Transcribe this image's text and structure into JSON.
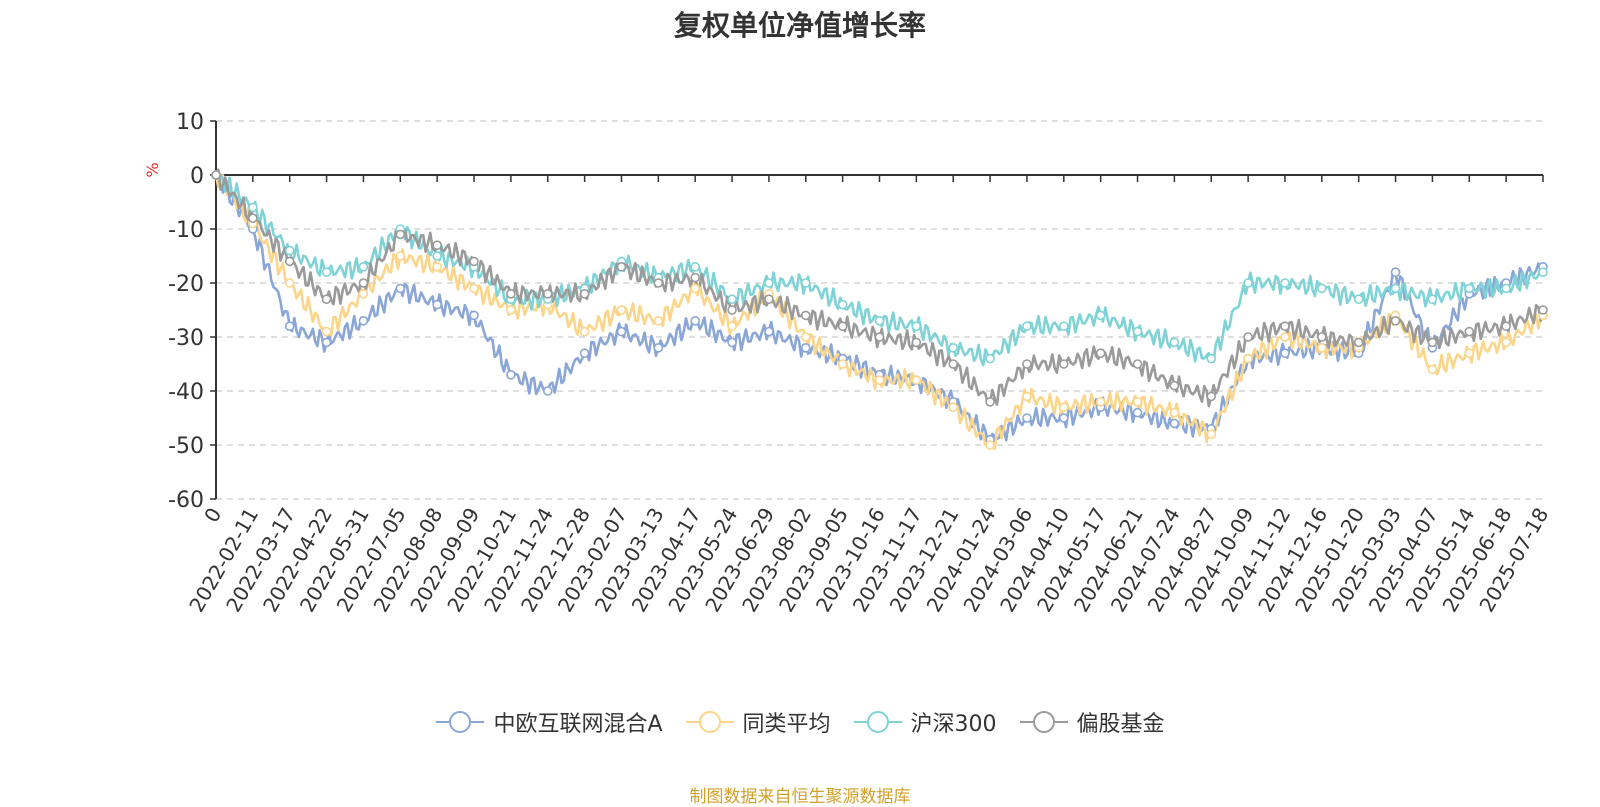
{
  "title": "复权单位净值增长率",
  "source_text": "制图数据来自恒生聚源数据库",
  "colors": {
    "series": [
      "#8aa6d6",
      "#fbd58a",
      "#7fd3d6",
      "#9a9a9a"
    ],
    "axis": "#333333",
    "grid": "#cccccc",
    "unit": "#e03030",
    "source": "#d1a12a"
  },
  "chart_data": {
    "type": "line",
    "title": "复权单位净值增长率",
    "ylabel": "%",
    "ylim": [
      -60,
      10
    ],
    "yticks": [
      10,
      0,
      -10,
      -20,
      -30,
      -40,
      -50,
      -60
    ],
    "grid": "dashed horizontal",
    "legend": "bottom",
    "x": [
      "0",
      "2022-02-11",
      "2022-03-17",
      "2022-04-22",
      "2022-05-31",
      "2022-07-05",
      "2022-08-08",
      "2022-09-09",
      "2022-10-21",
      "2022-11-24",
      "2022-12-28",
      "2023-02-07",
      "2023-03-13",
      "2023-04-17",
      "2023-05-24",
      "2023-06-29",
      "2023-08-02",
      "2023-09-05",
      "2023-10-16",
      "2023-11-17",
      "2023-12-21",
      "2024-01-24",
      "2024-03-06",
      "2024-04-10",
      "2024-05-17",
      "2024-06-21",
      "2024-07-24",
      "2024-08-27",
      "2024-10-09",
      "2024-11-12",
      "2024-12-16",
      "2025-01-20",
      "2025-03-03",
      "2025-04-07",
      "2025-05-14",
      "2025-06-18",
      "2025-07-18"
    ],
    "series": [
      {
        "name": "中欧互联网混合A",
        "values": [
          0,
          -10,
          -28,
          -31,
          -27,
          -21,
          -24,
          -26,
          -37,
          -40,
          -33,
          -29,
          -32,
          -27,
          -31,
          -29,
          -32,
          -34,
          -37,
          -38,
          -42,
          -49,
          -45,
          -45,
          -43,
          -44,
          -46,
          -47,
          -34,
          -33,
          -32,
          -33,
          -18,
          -32,
          -22,
          -20,
          -17
        ]
      },
      {
        "name": "同类平均",
        "values": [
          0,
          -9,
          -20,
          -29,
          -22,
          -15,
          -17,
          -21,
          -25,
          -24,
          -29,
          -25,
          -27,
          -21,
          -28,
          -22,
          -30,
          -35,
          -38,
          -38,
          -43,
          -50,
          -41,
          -43,
          -42,
          -42,
          -44,
          -48,
          -34,
          -30,
          -32,
          -32,
          -26,
          -36,
          -33,
          -31,
          -26
        ]
      },
      {
        "name": "沪深300",
        "values": [
          0,
          -6,
          -14,
          -18,
          -17,
          -10,
          -15,
          -17,
          -23,
          -23,
          -21,
          -16,
          -19,
          -17,
          -23,
          -20,
          -20,
          -24,
          -27,
          -28,
          -32,
          -34,
          -28,
          -28,
          -26,
          -29,
          -31,
          -34,
          -20,
          -20,
          -21,
          -23,
          -21,
          -23,
          -21,
          -21,
          -18
        ]
      },
      {
        "name": "偏股基金",
        "values": [
          0,
          -8,
          -16,
          -23,
          -20,
          -11,
          -13,
          -16,
          -22,
          -22,
          -22,
          -17,
          -20,
          -19,
          -25,
          -23,
          -26,
          -28,
          -30,
          -31,
          -35,
          -42,
          -35,
          -35,
          -33,
          -35,
          -39,
          -41,
          -30,
          -28,
          -30,
          -31,
          -27,
          -31,
          -29,
          -28,
          -25
        ]
      }
    ]
  }
}
